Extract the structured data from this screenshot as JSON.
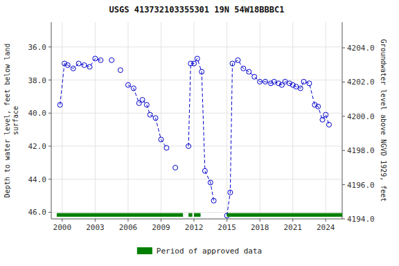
{
  "chart_data": {
    "type": "line",
    "title": "USGS 413732103355301  19N 54W18BBBC1",
    "ylabel": "Depth to water level, feet below land\nsurface",
    "y2label": "Groundwater level above NGVD 1929, feet",
    "x": [
      1999.8,
      2000.2,
      2000.5,
      2001.0,
      2001.5,
      2002.0,
      2002.5,
      2003.0,
      2003.5,
      null,
      2004.5,
      null,
      2005.3,
      null,
      2006.0,
      2006.5,
      2007.0,
      2007.3,
      2007.7,
      2008.0,
      2008.5,
      2009.0,
      2009.5,
      null,
      2010.3,
      null,
      2011.5,
      2011.7,
      2012.0,
      2012.3,
      2012.7,
      2013.0,
      2013.5,
      2013.8,
      null,
      2015.0,
      2015.3,
      2015.5,
      2016.0,
      2016.5,
      2017.0,
      2017.5,
      2018.0,
      2018.5,
      2019.0,
      2019.3,
      2019.7,
      2020.0,
      2020.3,
      2020.7,
      2021.0,
      2021.3,
      2021.7,
      2022.0,
      2022.5,
      2023.0,
      2023.3,
      2023.7,
      2024.0,
      2024.3
    ],
    "series": [
      {
        "color": "#0000cc",
        "marker": "circle",
        "line_style": "dashed",
        "values": [
          39.5,
          37.0,
          37.1,
          37.3,
          37.0,
          37.1,
          37.2,
          36.7,
          36.8,
          null,
          36.8,
          null,
          37.4,
          null,
          38.3,
          38.5,
          39.4,
          39.2,
          39.5,
          40.1,
          40.3,
          41.6,
          42.1,
          null,
          43.3,
          null,
          42.0,
          37.0,
          37.0,
          36.7,
          37.5,
          43.5,
          44.2,
          45.3,
          null,
          46.2,
          44.8,
          37.0,
          36.8,
          37.3,
          37.5,
          37.8,
          38.1,
          38.1,
          38.2,
          38.1,
          38.2,
          38.3,
          38.1,
          38.2,
          38.3,
          38.4,
          38.5,
          38.1,
          38.2,
          39.5,
          39.6,
          40.4,
          40.1,
          40.7
        ]
      }
    ],
    "approved": {
      "name": "Period of approved data",
      "color": "#008000",
      "segments": [
        [
          1999.5,
          2011.0
        ],
        [
          2011.5,
          2011.85
        ],
        [
          2012.0,
          2012.6
        ],
        [
          2015.0,
          2025.5
        ]
      ],
      "y": 46.05,
      "height": 0.22
    },
    "xlim": [
      1999.0,
      2025.5
    ],
    "xticks": [
      2000,
      2003,
      2006,
      2009,
      2012,
      2015,
      2018,
      2021,
      2024
    ],
    "ylim": [
      46.4,
      34.5
    ],
    "yticks": [
      {
        "value": 36.0,
        "label": "36.0"
      },
      {
        "value": 38.0,
        "label": "38.0"
      },
      {
        "value": 40.0,
        "label": "40.0"
      },
      {
        "value": 42.0,
        "label": "42.0"
      },
      {
        "value": 44.0,
        "label": "44.0"
      },
      {
        "value": 46.0,
        "label": "46.0"
      }
    ],
    "y2lim": [
      4194.0,
      4205.5
    ],
    "y2ticks": [
      {
        "value": 4194.0,
        "label": "4194.0"
      },
      {
        "value": 4196.0,
        "label": "4196.0"
      },
      {
        "value": 4198.0,
        "label": "4198.0"
      },
      {
        "value": 4200.0,
        "label": "4200.0"
      },
      {
        "value": 4202.0,
        "label": "4202.0"
      },
      {
        "value": 4204.0,
        "label": "4204.0"
      }
    ],
    "grid": true,
    "legend": "bottom"
  }
}
